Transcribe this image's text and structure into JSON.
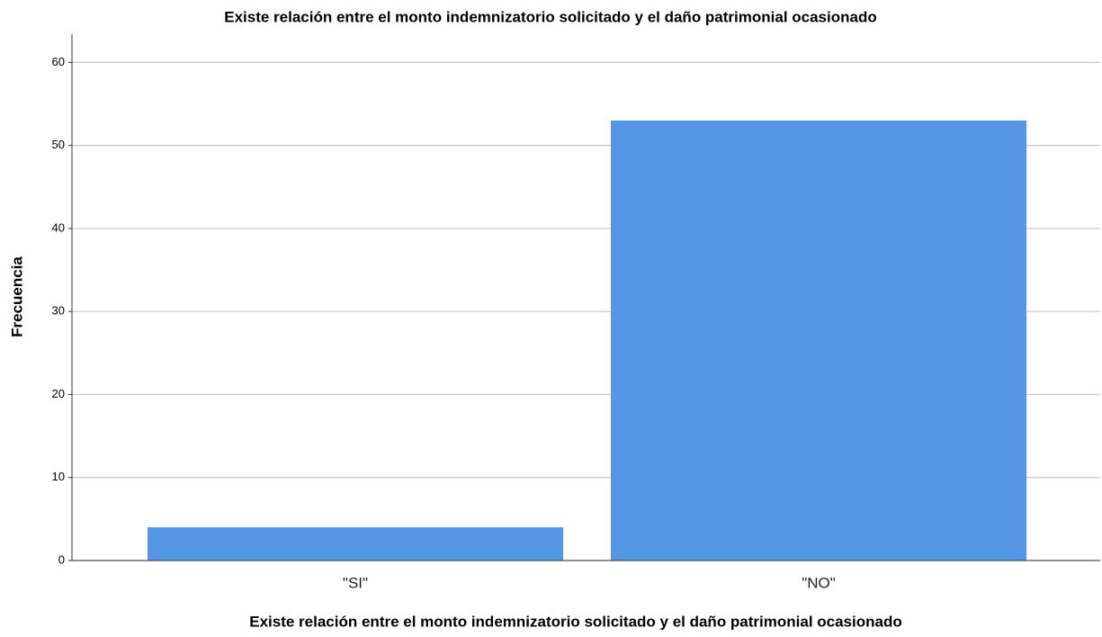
{
  "chart_data": {
    "type": "bar",
    "title": "Existe relación entre el monto indemnizatorio solicitado y el daño patrimonial ocasionado",
    "x_label": "Existe relación entre el monto indemnizatorio solicitado y el daño patrimonial ocasionado",
    "y_label": "Frecuencia",
    "categories": [
      "\"SI\"",
      "\"NO\""
    ],
    "values": [
      4,
      53
    ],
    "color": "#5596e6",
    "ylim": [
      0,
      63.4
    ],
    "yticks": [
      0,
      10,
      20,
      30,
      40,
      50,
      60
    ],
    "grid": true
  }
}
